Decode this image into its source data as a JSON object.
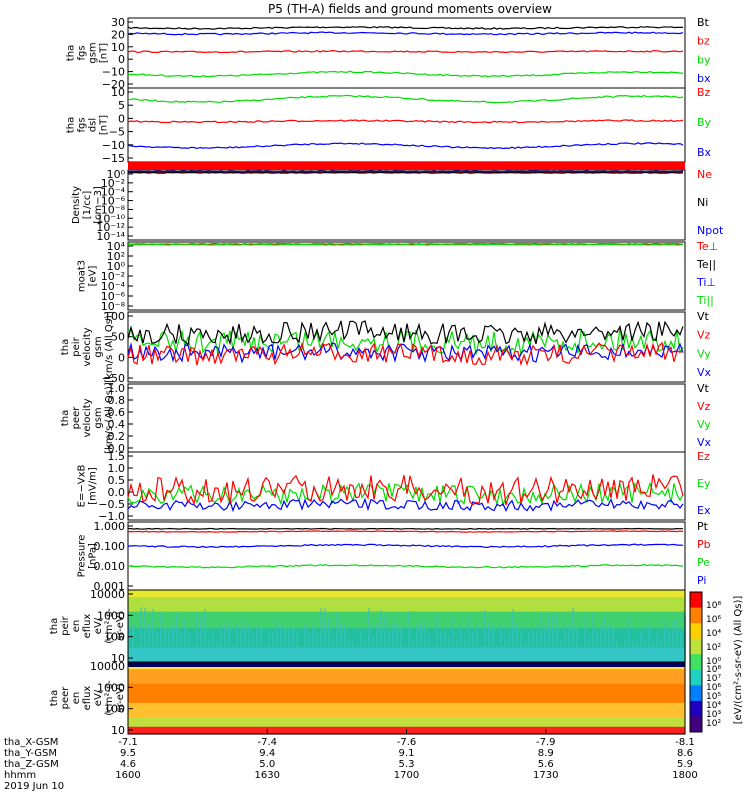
{
  "title": "P5 (TH-A) fields and ground moments overview",
  "colors": {
    "black": "#000000",
    "red": "#ff0000",
    "green": "#00dd00",
    "blue": "#0000ff"
  },
  "panels": [
    {
      "id": "fgs-gsm",
      "ylabel": [
        "tha",
        "fgs",
        "gsm",
        "[nT]"
      ],
      "ticks": [
        "30",
        "20",
        "10",
        "0",
        "−10",
        "−20"
      ],
      "legend": [
        {
          "text": "Bt",
          "color": "black"
        },
        {
          "text": "bz",
          "color": "red"
        },
        {
          "text": "by",
          "color": "green"
        },
        {
          "text": "bx",
          "color": "blue"
        }
      ]
    },
    {
      "id": "fgs-dsl",
      "ylabel": [
        "tha",
        "fgs",
        "dsl",
        "[nT]"
      ],
      "ticks": [
        "10",
        "5",
        "0",
        "−5",
        "−10",
        "−15"
      ],
      "legend": [
        {
          "text": "Bz",
          "color": "red"
        },
        {
          "text": "By",
          "color": "green"
        },
        {
          "text": "Bx",
          "color": "blue"
        }
      ]
    },
    {
      "id": "density",
      "ylabel": [
        "Density",
        "[1/cc]",
        "[cm−3]"
      ],
      "ticks": [
        "10⁰",
        "10⁻²",
        "10⁻⁴",
        "10⁻⁶",
        "10⁻⁸",
        "10⁻¹⁰",
        "10⁻¹²",
        "10⁻¹⁴"
      ],
      "legend": [
        {
          "text": "Ne",
          "color": "red"
        },
        {
          "text": "Ni",
          "color": "black"
        },
        {
          "text": "Npot",
          "color": "blue"
        }
      ]
    },
    {
      "id": "temp",
      "ylabel": [
        "moat3",
        "[eV]"
      ],
      "ticks": [
        "10⁴",
        "10²",
        "10⁰",
        "10⁻²",
        "10⁻⁴",
        "10⁻⁶",
        "10⁻⁸"
      ],
      "legend": [
        {
          "text": "Te⊥",
          "color": "red"
        },
        {
          "text": "Te||",
          "color": "black"
        },
        {
          "text": "Ti⊥",
          "color": "blue"
        },
        {
          "text": "Ti||",
          "color": "green"
        }
      ]
    },
    {
      "id": "peir-vel",
      "ylabel": [
        "tha",
        "peir",
        "velocity",
        "gsm",
        "[km/s (All Qs)]"
      ],
      "ticks": [
        "100",
        "50",
        "0",
        "−50"
      ],
      "legend": [
        {
          "text": "Vt",
          "color": "black"
        },
        {
          "text": "Vz",
          "color": "red"
        },
        {
          "text": "Vy",
          "color": "green"
        },
        {
          "text": "Vx",
          "color": "blue"
        }
      ]
    },
    {
      "id": "peer-vel",
      "ylabel": [
        "tha",
        "peer",
        "velocity",
        "gsm",
        "[km/s (All Qs)]"
      ],
      "ticks": [
        "1.0",
        "0.8",
        "0.6",
        "0.4",
        "0.2",
        "0.0"
      ],
      "legend": [
        {
          "text": "Vt",
          "color": "black"
        },
        {
          "text": "Vz",
          "color": "red"
        },
        {
          "text": "Vy",
          "color": "green"
        },
        {
          "text": "Vx",
          "color": "blue"
        }
      ]
    },
    {
      "id": "efield",
      "ylabel": [
        "E=−VxB",
        "[mV/m]"
      ],
      "ticks": [
        "1.5",
        "1.0",
        "0.5",
        "0.0",
        "−0.5",
        "−1.0"
      ],
      "legend": [
        {
          "text": "Ez",
          "color": "red"
        },
        {
          "text": "Ey",
          "color": "green"
        },
        {
          "text": "Ex",
          "color": "blue"
        }
      ]
    },
    {
      "id": "pressure",
      "ylabel": [
        "Pressure",
        "[nPa]"
      ],
      "ticks": [
        "1.000",
        "0.100",
        "0.010",
        "0.001"
      ],
      "legend": [
        {
          "text": "Pt",
          "color": "black"
        },
        {
          "text": "Pb",
          "color": "red"
        },
        {
          "text": "Pe",
          "color": "green"
        },
        {
          "text": "Pi",
          "color": "blue"
        }
      ]
    },
    {
      "id": "peir-en",
      "ylabel": [
        "tha",
        "peir",
        "en",
        "eflux",
        "eV/",
        "(cm²-s-",
        "sr-eV)"
      ],
      "ticks": [
        "10000",
        "1000",
        "100",
        "10"
      ]
    },
    {
      "id": "peer-en",
      "ylabel": [
        "tha",
        "peer",
        "en",
        "eflux",
        "eV/",
        "(cm²-s-",
        "sr-eV)"
      ],
      "ticks": [
        "10000",
        "1000",
        "100",
        "10"
      ]
    }
  ],
  "colorbar_label": "[eV/(cm²-s-sr-eV) (All Qs)]",
  "colorbar_ticks_top": [
    "10⁸",
    "10⁶",
    "10⁴",
    "10²",
    "10⁰"
  ],
  "colorbar_ticks_bottom": [
    "10⁸",
    "10⁷",
    "10⁶",
    "10⁵",
    "10⁴",
    "10³",
    "10²"
  ],
  "x_axis": {
    "row_labels": [
      "tha_X-GSM",
      "tha_Y-GSM",
      "tha_Z-GSM",
      "hhmm",
      "2019 Jun 10"
    ],
    "columns": [
      {
        "x": "-7.1",
        "y": "9.5",
        "z": "4.6",
        "t": "1600"
      },
      {
        "x": "-7.4",
        "y": "9.4",
        "z": "5.0",
        "t": "1630"
      },
      {
        "x": "-7.6",
        "y": "9.1",
        "z": "5.3",
        "t": "1700"
      },
      {
        "x": "-7.9",
        "y": "8.9",
        "z": "5.6",
        "t": "1730"
      },
      {
        "x": "-8.1",
        "y": "8.6",
        "z": "5.9",
        "t": "1800"
      }
    ]
  },
  "chart_data": {
    "type": "line",
    "title": "P5 (TH-A) fields and ground moments overview",
    "x": [
      "1600",
      "1630",
      "1700",
      "1730",
      "1800"
    ],
    "xlabel": "hhmm",
    "series": [
      {
        "name": "Bt",
        "panel": "fgs-gsm",
        "values": [
          21,
          22,
          23,
          24,
          26
        ]
      },
      {
        "name": "bz",
        "panel": "fgs-gsm",
        "values": [
          5,
          5,
          4,
          4,
          3
        ]
      },
      {
        "name": "by",
        "panel": "fgs-gsm",
        "values": [
          -11,
          -10,
          -9,
          -10,
          -9
        ]
      },
      {
        "name": "bx",
        "panel": "fgs-gsm",
        "values": [
          19,
          20,
          22,
          22,
          24
        ]
      },
      {
        "name": "Bz",
        "panel": "fgs-dsl",
        "values": [
          5,
          7,
          6,
          5,
          5
        ]
      },
      {
        "name": "By",
        "panel": "fgs-dsl",
        "values": [
          -2,
          -1,
          -1,
          -1,
          -1
        ]
      },
      {
        "name": "Bx",
        "panel": "fgs-dsl",
        "values": [
          -12,
          -10,
          -10,
          -9,
          -9
        ]
      },
      {
        "name": "Vt",
        "panel": "peir-vel",
        "values": [
          30,
          25,
          40,
          20,
          20
        ]
      },
      {
        "name": "Ez",
        "panel": "efield",
        "values": [
          0.8,
          0.6,
          0.7,
          0.5,
          0.5
        ]
      },
      {
        "name": "Pt",
        "panel": "pressure",
        "values": [
          0.22,
          0.22,
          0.22,
          0.22,
          0.22
        ]
      },
      {
        "name": "Pb",
        "panel": "pressure",
        "values": [
          0.19,
          0.19,
          0.18,
          0.19,
          0.19
        ]
      },
      {
        "name": "Pi",
        "panel": "pressure",
        "values": [
          0.08,
          0.07,
          0.06,
          0.06,
          0.05
        ]
      },
      {
        "name": "Pe",
        "panel": "pressure",
        "values": [
          0.015,
          0.014,
          0.014,
          0.013,
          0.014
        ]
      }
    ]
  }
}
